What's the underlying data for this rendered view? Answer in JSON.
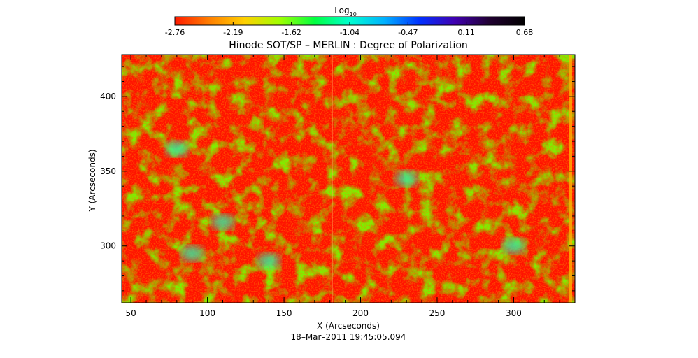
{
  "chart_data": {
    "type": "heatmap",
    "title": "Hinode SOT/SP – MERLIN : Degree of Polarization",
    "xlabel": "X (Arcseconds)",
    "ylabel": "Y (Arcseconds)",
    "xlim": [
      44,
      340
    ],
    "ylim": [
      262,
      428
    ],
    "xticks": [
      50,
      100,
      150,
      200,
      250,
      300
    ],
    "yticks": [
      300,
      350,
      400
    ],
    "timestamp": "18–Mar–2011 19:45:05.094",
    "colorbar": {
      "label_main": "Log",
      "label_sub": "10",
      "range": [
        -2.76,
        0.68
      ],
      "ticks": [
        "-2.76",
        "-2.19",
        "-1.62",
        "-1.04",
        "-0.47",
        "0.11",
        "0.68"
      ],
      "colors": [
        "#ff1a00",
        "#ff8000",
        "#ffd000",
        "#a0ff00",
        "#00ff40",
        "#00ffd0",
        "#00b0ff",
        "#0030ff",
        "#4000b0",
        "#200030",
        "#000000"
      ]
    },
    "map_colors": {
      "background": "#ff1200",
      "low": "#ff1a00",
      "mid": "#7cf000",
      "high": "#30f0a0"
    },
    "bright_regions": [
      {
        "x": 110,
        "y": 316,
        "value": -1.3
      },
      {
        "x": 140,
        "y": 290,
        "value": -1.2
      },
      {
        "x": 90,
        "y": 295,
        "value": -1.5
      },
      {
        "x": 80,
        "y": 365,
        "value": -1.6
      },
      {
        "x": 300,
        "y": 300,
        "value": -1.6
      },
      {
        "x": 230,
        "y": 345,
        "value": -1.8
      }
    ]
  }
}
